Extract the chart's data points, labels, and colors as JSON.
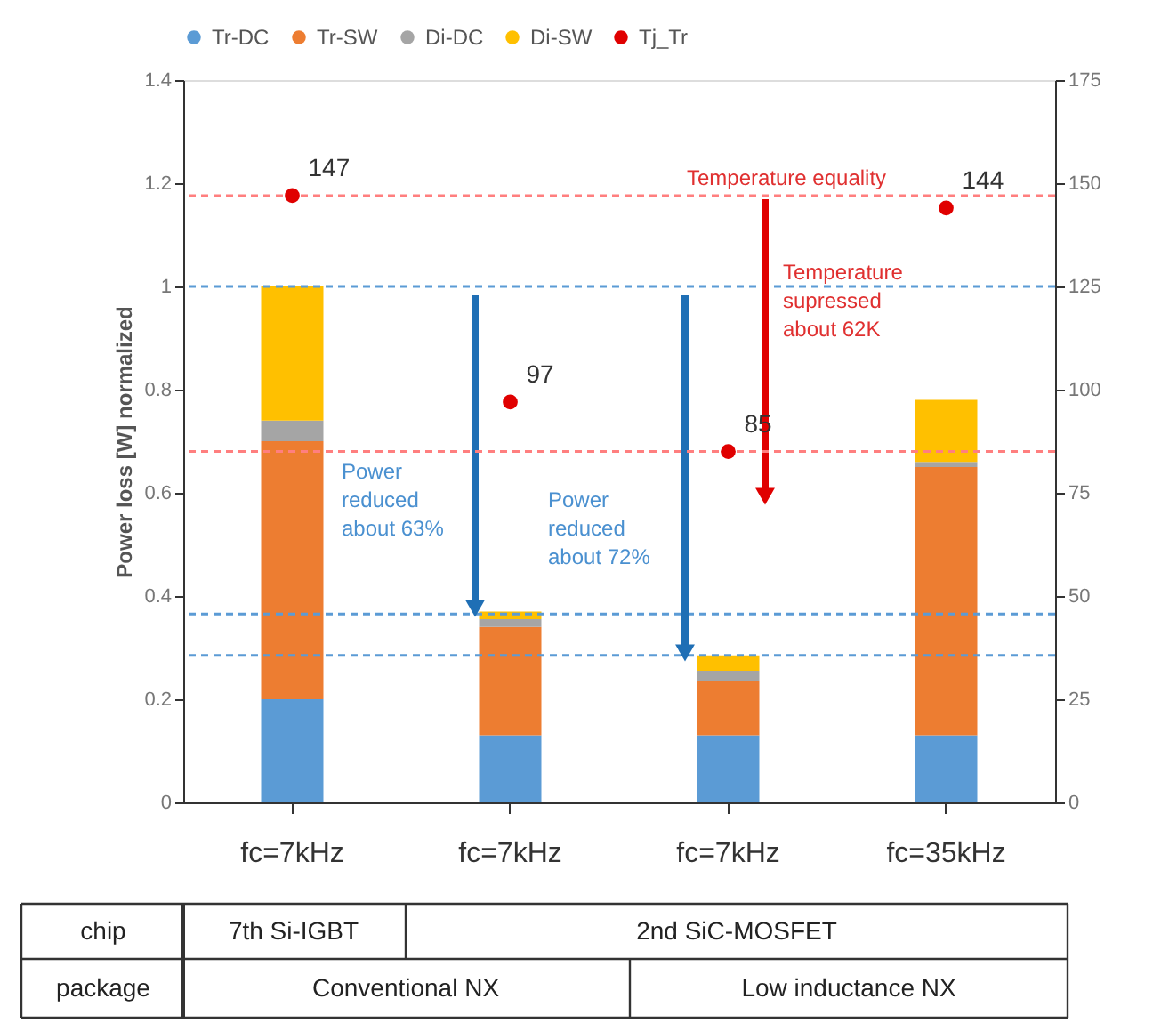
{
  "chart_data": {
    "type": "bar",
    "stacked": true,
    "categories": [
      "fc=7kHz",
      "fc=7kHz",
      "fc=7kHz",
      "fc=35kHz"
    ],
    "ylabel": "Power loss [W] normalized",
    "ylim": [
      0,
      1.4
    ],
    "yticks": [
      0,
      0.2,
      0.4,
      0.6,
      0.8,
      1,
      1.2,
      1.4
    ],
    "y2lim": [
      0,
      175
    ],
    "y2ticks": [
      0,
      25,
      50,
      75,
      100,
      125,
      150,
      175
    ],
    "grid": false,
    "legend": "top",
    "series": [
      {
        "name": "Tr-DC",
        "color": "#5b9bd5",
        "values": [
          0.2,
          0.13,
          0.13,
          0.13
        ]
      },
      {
        "name": "Tr-SW",
        "color": "#ed7d31",
        "values": [
          0.5,
          0.21,
          0.105,
          0.52
        ]
      },
      {
        "name": "Di-DC",
        "color": "#a5a5a5",
        "values": [
          0.04,
          0.015,
          0.02,
          0.01
        ]
      },
      {
        "name": "Di-SW",
        "color": "#ffc000",
        "values": [
          0.26,
          0.015,
          0.03,
          0.12
        ]
      },
      {
        "name": "Tj_Tr",
        "type": "scatter",
        "axis": "y2",
        "marker": "circle",
        "color": "#e00000",
        "values": [
          147,
          97,
          85,
          144
        ],
        "value_labels": [
          "147",
          "97",
          "85",
          "144"
        ]
      }
    ],
    "ref_lines": [
      {
        "axis": "y2",
        "value": 147,
        "label": null,
        "color": "#ff7f7f",
        "line_style": "dashed"
      },
      {
        "axis": "y2",
        "value": 85,
        "label": null,
        "color": "#ff7f7f",
        "line_style": "dashed"
      },
      {
        "axis": "y",
        "value": 1,
        "label": null,
        "color": "#5b9bd5",
        "line_style": "dashed"
      },
      {
        "axis": "y",
        "value": 0.365,
        "label": null,
        "color": "#5b9bd5",
        "line_style": "dashed"
      },
      {
        "axis": "y",
        "value": 0.285,
        "label": null,
        "color": "#5b9bd5",
        "line_style": "dashed"
      }
    ],
    "annotations": [
      "chip",
      "7th Si-IGBT",
      "2nd SiC-MOSFET",
      "package",
      "Conventional NX",
      "Low inductance NX",
      "Temperature equality",
      "Power\nreduced\nabout 63%",
      "Power\nreduced\nabout 72%",
      "Temperature\nsupressed\nabout 62K"
    ]
  }
}
